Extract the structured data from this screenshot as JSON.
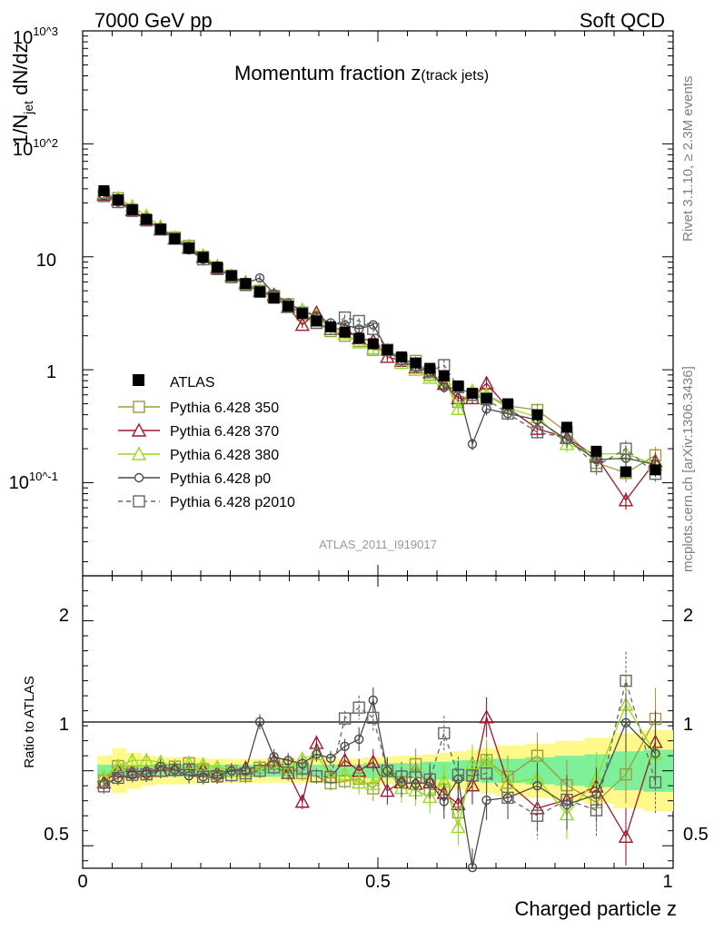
{
  "header": {
    "left": "7000 GeV pp",
    "right": "Soft QCD"
  },
  "side_text": {
    "rivet": "Rivet 3.1.10, ≥ 2.3M events",
    "site": "mcplots.cern.ch [arXiv:1306.3436]"
  },
  "chart_data": [
    {
      "type": "scatter",
      "title_main": "Momentum fraction ",
      "title_var": "z",
      "title_sub": "(track jets)",
      "ylabel": "1/N_jet dN/dz",
      "yscale": "log",
      "ylim": [
        0.015,
        1000
      ],
      "xlim": [
        0,
        1
      ],
      "y_tick_labels": [
        "10^-1",
        "1",
        "10",
        "10^2",
        "10^3"
      ],
      "analysis_tag": "ATLAS_2011_I919017",
      "legend_position": "middle-left",
      "x": [
        0.036,
        0.06,
        0.084,
        0.108,
        0.132,
        0.156,
        0.18,
        0.204,
        0.228,
        0.252,
        0.276,
        0.3,
        0.324,
        0.348,
        0.372,
        0.396,
        0.42,
        0.444,
        0.468,
        0.492,
        0.516,
        0.54,
        0.564,
        0.588,
        0.612,
        0.636,
        0.66,
        0.684,
        0.72,
        0.77,
        0.82,
        0.87,
        0.92,
        0.97
      ],
      "data": {
        "name": "ATLAS",
        "values": [
          38.5,
          32,
          26.2,
          21.5,
          17.5,
          14.4,
          11.9,
          9.9,
          8.1,
          6.8,
          5.8,
          4.9,
          4.3,
          3.65,
          3.15,
          2.7,
          2.4,
          2.15,
          1.9,
          1.7,
          1.5,
          1.3,
          1.15,
          1.03,
          0.88,
          0.72,
          0.62,
          0.56,
          0.5,
          0.4,
          0.31,
          0.19,
          0.125,
          0.13
        ]
      },
      "series": [
        {
          "name": "Pythia 6.428 350",
          "color": "#a09a3c",
          "marker": "square",
          "line": "solid",
          "values": [
            36,
            33,
            26,
            21,
            17.5,
            14.8,
            12.5,
            10,
            7.8,
            6.8,
            5.6,
            5,
            4.5,
            3.8,
            3.1,
            2.6,
            2.2,
            2,
            1.8,
            1.5,
            1.5,
            1.2,
            1.2,
            0.9,
            0.77,
            0.52,
            0.6,
            0.6,
            0.48,
            0.44,
            0.28,
            0.15,
            0.122,
            0.175
          ]
        },
        {
          "name": "Pythia 6.428 370",
          "color": "#9e1a2c",
          "marker": "triangle",
          "line": "solid",
          "values": [
            35.5,
            32,
            26,
            21.5,
            17.5,
            14.5,
            12,
            10,
            8,
            6.8,
            5.9,
            5,
            4.6,
            3.6,
            2.5,
            3.2,
            2.3,
            2.3,
            1.9,
            1.8,
            1.3,
            1.2,
            1.05,
            0.95,
            0.75,
            0.56,
            0.56,
            0.76,
            0.46,
            0.3,
            0.25,
            0.17,
            0.07,
            0.155
          ]
        },
        {
          "name": "Pythia 6.428 380",
          "color": "#96dc1e",
          "marker": "triangle",
          "line": "solid",
          "values": [
            37,
            33,
            28,
            23,
            18.5,
            14.8,
            12.5,
            10.3,
            8.3,
            6.8,
            5.8,
            5,
            4.4,
            3.7,
            3.4,
            3,
            2.3,
            2.1,
            1.75,
            1.55,
            1.5,
            1.15,
            1.0,
            0.85,
            0.82,
            0.45,
            0.65,
            0.6,
            0.46,
            0.38,
            0.22,
            0.18,
            0.18,
            0.145
          ]
        },
        {
          "name": "Pythia 6.428 p0",
          "color": "#4a4a4a",
          "marker": "circle",
          "line": "solid",
          "values": [
            35,
            30.5,
            25.5,
            21,
            18,
            14.5,
            11.5,
            9.5,
            7.8,
            6.8,
            5.8,
            6.5,
            4.7,
            3.9,
            3.3,
            3,
            2.6,
            2.5,
            2.3,
            2.5,
            1.5,
            1.2,
            1.05,
            0.95,
            0.7,
            0.68,
            0.22,
            0.45,
            0.41,
            0.36,
            0.24,
            0.16,
            0.165,
            0.145
          ]
        },
        {
          "name": "Pythia 6.428 p2010",
          "color": "#666666",
          "marker": "square",
          "line": "dashed",
          "values": [
            34.5,
            30.5,
            25.5,
            21,
            17.5,
            14.5,
            12,
            9.5,
            7.8,
            6.6,
            5.7,
            4.9,
            4.4,
            3.6,
            3.2,
            2.6,
            2.3,
            2.9,
            2.7,
            2.3,
            1.5,
            1.25,
            1.1,
            0.97,
            1.1,
            0.7,
            0.6,
            0.55,
            0.41,
            0.28,
            0.25,
            0.14,
            0.2,
            0.12
          ]
        }
      ]
    },
    {
      "type": "line",
      "ylabel": "Ratio to ATLAS",
      "xlabel": "Charged particle z",
      "ylim": [
        0.35,
        2.3
      ],
      "y_tick_labels": [
        "0.5",
        "1",
        "2"
      ],
      "x_tick_labels": [
        "0",
        "0.5",
        "1"
      ],
      "band_edges": [
        0.025,
        0.05,
        0.075,
        0.1,
        0.125,
        0.15,
        0.175,
        0.2,
        0.225,
        0.25,
        0.275,
        0.3,
        0.325,
        0.35,
        0.375,
        0.4,
        0.425,
        0.45,
        0.475,
        0.5,
        0.525,
        0.55,
        0.575,
        0.6,
        0.625,
        0.65,
        0.675,
        0.7,
        0.75,
        0.8,
        0.85,
        0.9,
        0.95,
        1.0
      ],
      "band_outer_halfwidth": [
        0.1,
        0.15,
        0.12,
        0.1,
        0.09,
        0.09,
        0.09,
        0.08,
        0.08,
        0.08,
        0.08,
        0.08,
        0.08,
        0.08,
        0.08,
        0.08,
        0.08,
        0.08,
        0.09,
        0.09,
        0.1,
        0.1,
        0.11,
        0.12,
        0.13,
        0.14,
        0.15,
        0.17,
        0.18,
        0.2,
        0.22,
        0.25,
        0.27
      ],
      "band_inner_halfwidth": [
        0.04,
        0.04,
        0.04,
        0.04,
        0.04,
        0.04,
        0.04,
        0.04,
        0.04,
        0.04,
        0.04,
        0.04,
        0.04,
        0.04,
        0.04,
        0.04,
        0.04,
        0.04,
        0.05,
        0.05,
        0.05,
        0.05,
        0.06,
        0.06,
        0.07,
        0.07,
        0.08,
        0.08,
        0.09,
        0.1,
        0.11,
        0.13,
        0.14
      ]
    }
  ]
}
